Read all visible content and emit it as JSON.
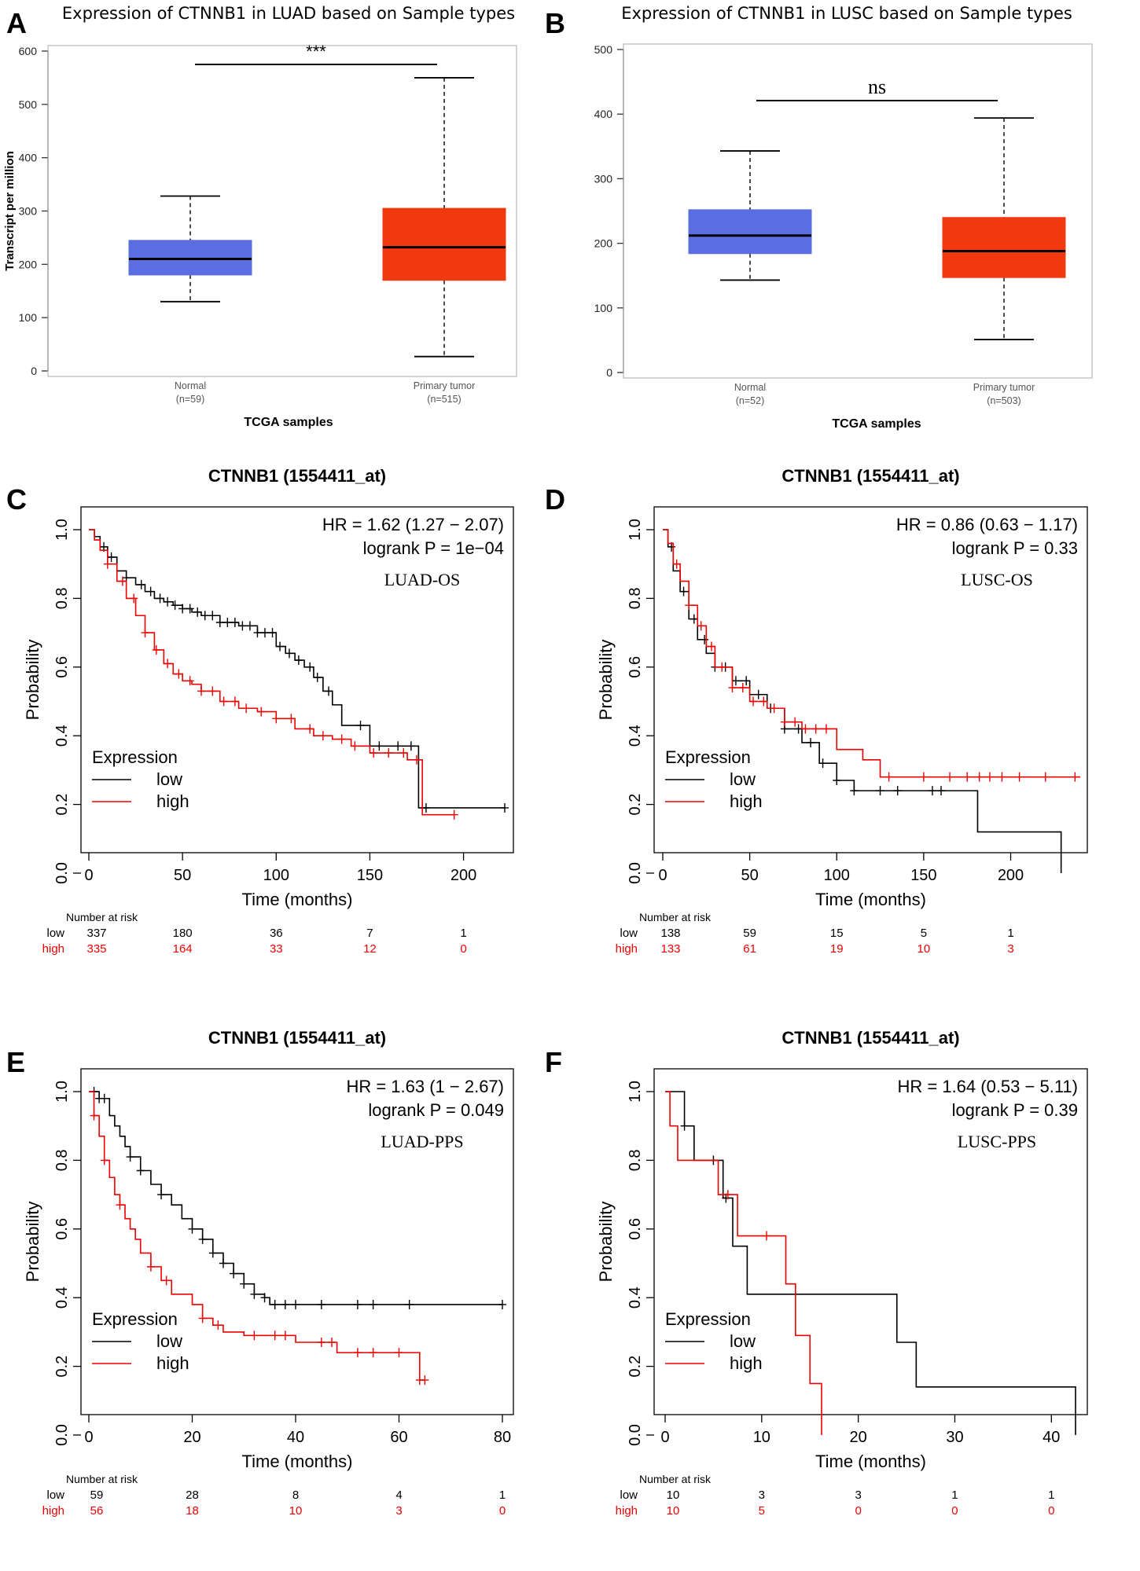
{
  "figure": {
    "panels": [
      {
        "letter": "A"
      },
      {
        "letter": "B"
      },
      {
        "letter": "C"
      },
      {
        "letter": "D"
      },
      {
        "letter": "E"
      },
      {
        "letter": "F"
      }
    ]
  },
  "colors": {
    "normal_box": "#5b6ee1",
    "tumor_box": "#f2380f",
    "low_line": "#000000",
    "high_line": "#ee0000"
  },
  "chart_data": [
    {
      "type": "box",
      "panel": "A",
      "title": "Expression of CTNNB1 in LUAD based on Sample types",
      "xlabel": "TCGA samples",
      "ylabel": "Transcript per million",
      "ylim": [
        0,
        600
      ],
      "yticks": [
        0,
        100,
        200,
        300,
        400,
        500,
        600
      ],
      "significance": "***",
      "boxes": [
        {
          "name": "Normal",
          "n_label": "(n=59)",
          "min": 130,
          "q1": 180,
          "median": 210,
          "q3": 245,
          "max": 328,
          "color": "#5b6ee1"
        },
        {
          "name": "Primary tumor",
          "n_label": "(n=515)",
          "min": 27,
          "q1": 170,
          "median": 232,
          "q3": 305,
          "max": 550,
          "color": "#f2380f"
        }
      ]
    },
    {
      "type": "box",
      "panel": "B",
      "title": "Expression of CTNNB1 in LUSC based on Sample types",
      "xlabel": "TCGA samples",
      "ylabel": "",
      "ylim": [
        0,
        500
      ],
      "yticks": [
        0,
        100,
        200,
        300,
        400,
        500
      ],
      "significance": "ns",
      "boxes": [
        {
          "name": "Normal",
          "n_label": "(n=52)",
          "min": 143,
          "q1": 184,
          "median": 212,
          "q3": 252,
          "max": 343,
          "color": "#5b6ee1"
        },
        {
          "name": "Primary tumor",
          "n_label": "(n=503)",
          "min": 51,
          "q1": 147,
          "median": 188,
          "q3": 240,
          "max": 394,
          "color": "#f2380f"
        }
      ]
    },
    {
      "type": "line",
      "subtype": "kaplan-meier",
      "panel": "C",
      "title": "CTNNB1 (1554411_at)",
      "hr_text": "HR = 1.62 (1.27 − 2.07)",
      "p_text": "logrank P = 1e−04",
      "annotation": "LUAD-OS",
      "xlabel": "Time (months)",
      "ylabel": "Probability",
      "xlim": [
        0,
        222
      ],
      "xticks": [
        0,
        50,
        100,
        150,
        200
      ],
      "ylim": [
        0,
        1
      ],
      "yticks": [
        "0.0",
        "0.2",
        "0.4",
        "0.6",
        "0.8",
        "1.0"
      ],
      "legend_title": "Expression",
      "series": [
        {
          "name": "low",
          "color": "#000000",
          "x": [
            0,
            3,
            6,
            10,
            15,
            20,
            25,
            30,
            35,
            40,
            45,
            50,
            55,
            60,
            70,
            80,
            90,
            100,
            105,
            110,
            115,
            120,
            125,
            130,
            135,
            150,
            160,
            175,
            176,
            222
          ],
          "y": [
            1.0,
            0.98,
            0.95,
            0.92,
            0.88,
            0.86,
            0.84,
            0.82,
            0.8,
            0.79,
            0.78,
            0.77,
            0.76,
            0.75,
            0.73,
            0.72,
            0.7,
            0.66,
            0.64,
            0.62,
            0.6,
            0.57,
            0.53,
            0.49,
            0.43,
            0.37,
            0.37,
            0.37,
            0.19,
            0.19
          ],
          "censor_x": [
            8,
            12,
            20,
            28,
            33,
            38,
            42,
            46,
            50,
            54,
            58,
            62,
            66,
            70,
            74,
            78,
            82,
            86,
            90,
            94,
            98,
            102,
            107,
            112,
            118,
            122,
            128,
            145,
            155,
            165,
            172,
            180,
            222
          ]
        },
        {
          "name": "high",
          "color": "#ee0000",
          "x": [
            0,
            3,
            6,
            10,
            15,
            20,
            25,
            30,
            35,
            40,
            45,
            50,
            55,
            60,
            70,
            80,
            90,
            100,
            110,
            120,
            130,
            140,
            150,
            170,
            178,
            195
          ],
          "y": [
            1.0,
            0.97,
            0.94,
            0.9,
            0.85,
            0.8,
            0.75,
            0.7,
            0.65,
            0.61,
            0.58,
            0.56,
            0.55,
            0.53,
            0.5,
            0.48,
            0.47,
            0.45,
            0.42,
            0.4,
            0.39,
            0.37,
            0.35,
            0.33,
            0.17,
            0.17
          ],
          "censor_x": [
            10,
            18,
            24,
            30,
            36,
            42,
            48,
            54,
            60,
            66,
            72,
            78,
            84,
            92,
            100,
            108,
            118,
            125,
            135,
            142,
            152,
            160,
            168,
            175,
            195
          ]
        }
      ],
      "risk_table": {
        "header": "Number at risk",
        "times": [
          0,
          50,
          100,
          150,
          200
        ],
        "rows": [
          {
            "label": "low",
            "values": [
              "337",
              "180",
              "36",
              "7",
              "1"
            ]
          },
          {
            "label": "high",
            "values": [
              "335",
              "164",
              "33",
              "12",
              "0"
            ]
          }
        ]
      }
    },
    {
      "type": "line",
      "subtype": "kaplan-meier",
      "panel": "D",
      "title": "CTNNB1 (1554411_at)",
      "hr_text": "HR = 0.86 (0.63 − 1.17)",
      "p_text": "logrank P = 0.33",
      "annotation": "LUSC-OS",
      "xlabel": "Time (months)",
      "ylabel": "Probability",
      "xlim": [
        0,
        240
      ],
      "xticks": [
        0,
        50,
        100,
        150,
        200
      ],
      "ylim": [
        0,
        1
      ],
      "yticks": [
        "0.0",
        "0.2",
        "0.4",
        "0.6",
        "0.8",
        "1.0"
      ],
      "legend_title": "Expression",
      "series": [
        {
          "name": "low",
          "color": "#000000",
          "x": [
            0,
            3,
            6,
            10,
            15,
            20,
            25,
            30,
            40,
            50,
            60,
            70,
            80,
            90,
            100,
            110,
            180,
            181,
            228,
            229
          ],
          "y": [
            1.0,
            0.95,
            0.88,
            0.82,
            0.74,
            0.68,
            0.64,
            0.6,
            0.56,
            0.52,
            0.48,
            0.42,
            0.38,
            0.32,
            0.27,
            0.24,
            0.24,
            0.12,
            0.12,
            0.0
          ],
          "censor_x": [
            5,
            12,
            18,
            24,
            30,
            36,
            42,
            48,
            55,
            62,
            70,
            78,
            85,
            92,
            100,
            110,
            125,
            135,
            155,
            160
          ]
        },
        {
          "name": "high",
          "color": "#ee0000",
          "x": [
            0,
            3,
            6,
            10,
            15,
            20,
            25,
            30,
            40,
            50,
            60,
            70,
            80,
            90,
            100,
            115,
            125,
            135,
            240
          ],
          "y": [
            1.0,
            0.96,
            0.9,
            0.85,
            0.78,
            0.72,
            0.66,
            0.6,
            0.54,
            0.5,
            0.48,
            0.44,
            0.42,
            0.42,
            0.36,
            0.33,
            0.28,
            0.28,
            0.28
          ],
          "censor_x": [
            8,
            15,
            22,
            28,
            34,
            40,
            46,
            52,
            58,
            64,
            70,
            76,
            82,
            88,
            94,
            130,
            150,
            165,
            175,
            182,
            188,
            195,
            205,
            220,
            237
          ]
        }
      ],
      "risk_table": {
        "header": "Number at risk",
        "times": [
          0,
          50,
          100,
          150,
          200
        ],
        "rows": [
          {
            "label": "low",
            "values": [
              "138",
              "59",
              "15",
              "5",
              "1"
            ]
          },
          {
            "label": "high",
            "values": [
              "133",
              "61",
              "19",
              "10",
              "3"
            ]
          }
        ]
      }
    },
    {
      "type": "line",
      "subtype": "kaplan-meier",
      "panel": "E",
      "title": "CTNNB1 (1554411_at)",
      "hr_text": "HR = 1.63 (1 − 2.67)",
      "p_text": "logrank P = 0.049",
      "annotation": "LUAD-PPS",
      "xlabel": "Time (months)",
      "ylabel": "Probability",
      "xlim": [
        0,
        80
      ],
      "xticks": [
        0,
        20,
        40,
        60,
        80
      ],
      "ylim": [
        0,
        1
      ],
      "yticks": [
        "0.0",
        "0.2",
        "0.4",
        "0.6",
        "0.8",
        "1.0"
      ],
      "legend_title": "Expression",
      "series": [
        {
          "name": "low",
          "color": "#000000",
          "x": [
            0,
            2,
            4,
            5,
            6,
            7,
            8,
            10,
            12,
            14,
            16,
            18,
            20,
            22,
            24,
            26,
            28,
            30,
            32,
            34,
            35,
            80
          ],
          "y": [
            1.0,
            0.98,
            0.93,
            0.9,
            0.87,
            0.84,
            0.81,
            0.77,
            0.73,
            0.7,
            0.67,
            0.63,
            0.6,
            0.57,
            0.53,
            0.5,
            0.47,
            0.44,
            0.41,
            0.4,
            0.38,
            0.38
          ],
          "censor_x": [
            1,
            2,
            3,
            8,
            10,
            14,
            20,
            22,
            24,
            26,
            28,
            30,
            32,
            34,
            36,
            38,
            40,
            45,
            52,
            55,
            62,
            80
          ]
        },
        {
          "name": "high",
          "color": "#ee0000",
          "x": [
            0,
            1,
            2,
            3,
            4,
            5,
            6,
            7,
            8,
            9,
            10,
            12,
            14,
            16,
            18,
            20,
            22,
            24,
            26,
            30,
            36,
            40,
            48,
            56,
            64,
            65
          ],
          "y": [
            1.0,
            0.93,
            0.87,
            0.8,
            0.75,
            0.7,
            0.67,
            0.63,
            0.6,
            0.57,
            0.53,
            0.49,
            0.45,
            0.41,
            0.41,
            0.38,
            0.34,
            0.32,
            0.3,
            0.29,
            0.29,
            0.27,
            0.24,
            0.24,
            0.16,
            0.16
          ],
          "censor_x": [
            1,
            3,
            6,
            12,
            15,
            22,
            25,
            32,
            36,
            38,
            45,
            47,
            52,
            55,
            60,
            64,
            65
          ]
        }
      ],
      "risk_table": {
        "header": "Number at risk",
        "times": [
          0,
          20,
          40,
          60,
          80
        ],
        "rows": [
          {
            "label": "low",
            "values": [
              "59",
              "28",
              "8",
              "4",
              "1"
            ]
          },
          {
            "label": "high",
            "values": [
              "56",
              "18",
              "10",
              "3",
              "0"
            ]
          }
        ]
      }
    },
    {
      "type": "line",
      "subtype": "kaplan-meier",
      "panel": "F",
      "title": "CTNNB1 (1554411_at)",
      "hr_text": "HR = 1.64 (0.53 − 5.11)",
      "p_text": "logrank P = 0.39",
      "annotation": "LUSC-PPS",
      "xlabel": "Time (months)",
      "ylabel": "Probability",
      "xlim": [
        0,
        42.5
      ],
      "xticks": [
        0,
        10,
        20,
        30,
        40
      ],
      "ylim": [
        0,
        1
      ],
      "yticks": [
        "0.0",
        "0.2",
        "0.4",
        "0.6",
        "0.8",
        "1.0"
      ],
      "legend_title": "Expression",
      "series": [
        {
          "name": "low",
          "color": "#000000",
          "x": [
            0,
            1.2,
            2.0,
            3.0,
            5.5,
            6.0,
            7.0,
            8.5,
            24.0,
            26.0,
            42.5
          ],
          "y": [
            1.0,
            1.0,
            0.9,
            0.8,
            0.8,
            0.69,
            0.55,
            0.41,
            0.27,
            0.14,
            0.0
          ],
          "censor_x": [
            2.0,
            5.0,
            6.3
          ]
        },
        {
          "name": "high",
          "color": "#ee0000",
          "x": [
            0,
            0.5,
            1.3,
            5.5,
            7.5,
            12.5,
            13.5,
            15.0,
            16.2
          ],
          "y": [
            1.0,
            0.9,
            0.8,
            0.7,
            0.58,
            0.44,
            0.29,
            0.15,
            0.0
          ],
          "censor_x": [
            6.5,
            10.5
          ]
        }
      ],
      "risk_table": {
        "header": "Number at risk",
        "times": [
          0,
          10,
          20,
          30,
          40
        ],
        "rows": [
          {
            "label": "low",
            "values": [
              "10",
              "3",
              "3",
              "1",
              "1"
            ]
          },
          {
            "label": "high",
            "values": [
              "10",
              "5",
              "0",
              "0",
              "0"
            ]
          }
        ]
      }
    }
  ]
}
